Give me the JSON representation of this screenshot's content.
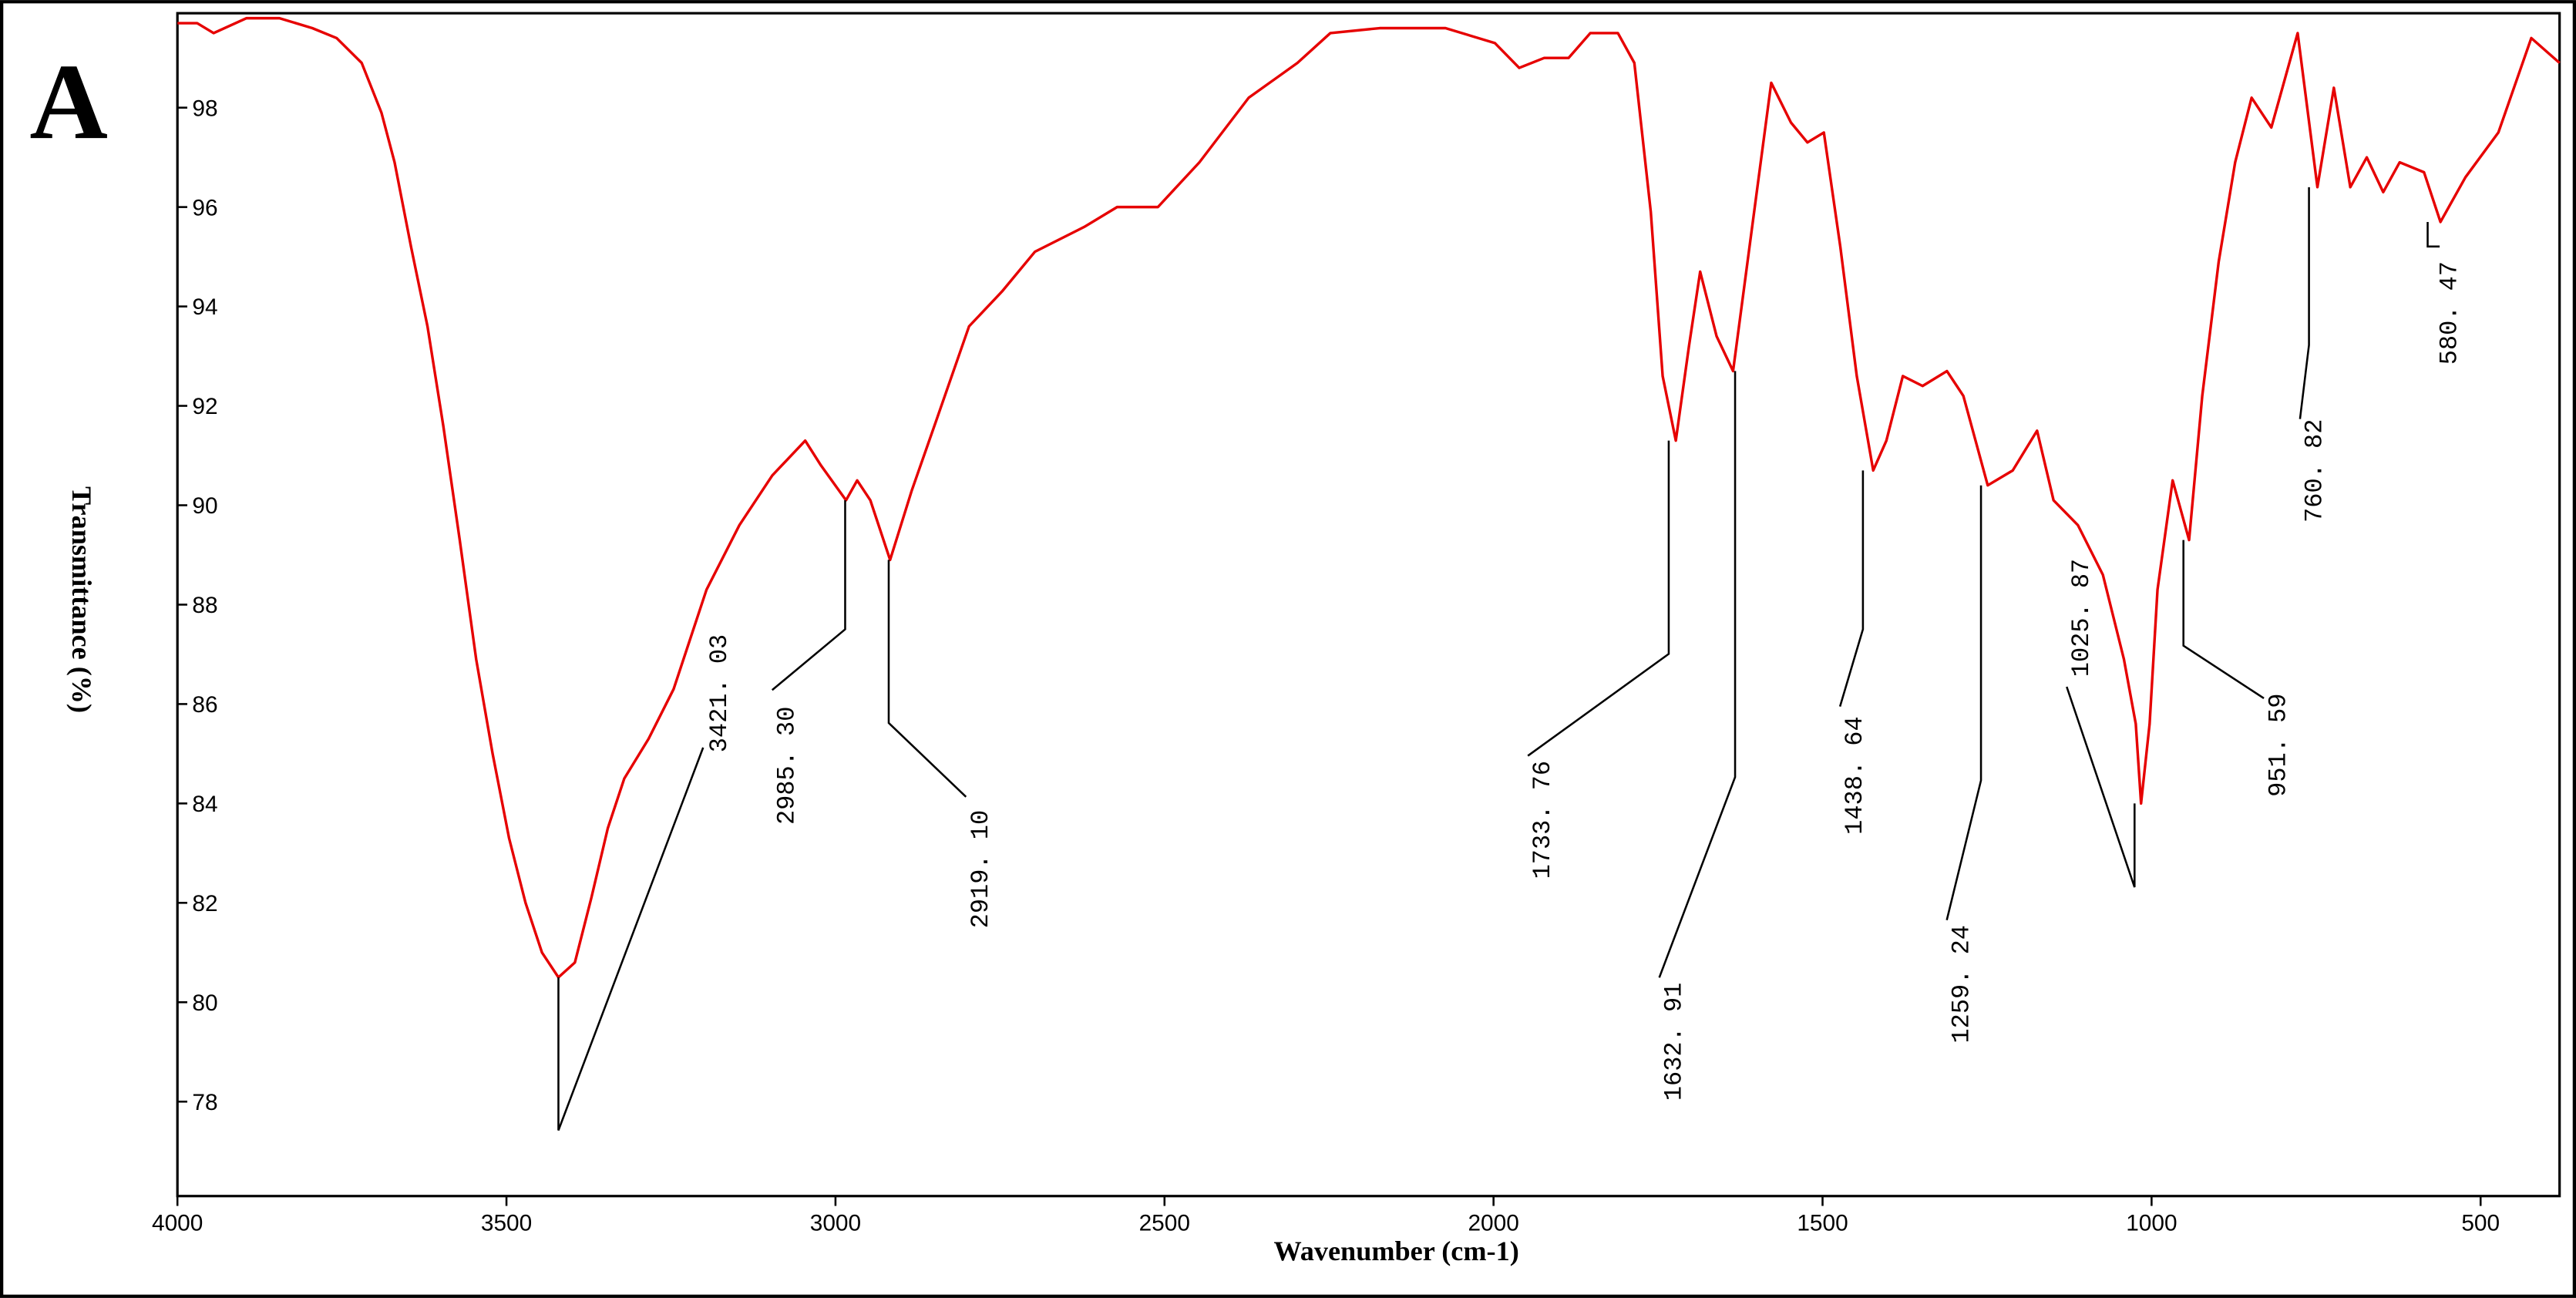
{
  "chart_data": {
    "type": "line",
    "panel_label": "A",
    "x_label": "Wavenumber (cm-1)",
    "y_label": "Transmittance (%)",
    "xlim": [
      4000,
      380
    ],
    "ylim": [
      76.1,
      99.9
    ],
    "xticks": [
      4000,
      3500,
      3000,
      2500,
      2000,
      1500,
      1000,
      500
    ],
    "yticks": [
      78,
      80,
      82,
      84,
      86,
      88,
      90,
      92,
      94,
      96,
      98
    ],
    "series": [
      {
        "color": "#e60000",
        "x": [
          4000,
          3970,
          3945,
          3895,
          3845,
          3795,
          3758,
          3720,
          3690,
          3670,
          3645,
          3620,
          3596,
          3571,
          3546,
          3521,
          3496,
          3471,
          3446,
          3421,
          3396,
          3371,
          3346,
          3321,
          3284,
          3246,
          3196,
          3146,
          3096,
          3046,
          3022,
          2984,
          2967,
          2947,
          2917,
          2884,
          2847,
          2797,
          2747,
          2697,
          2622,
          2572,
          2510,
          2447,
          2372,
          2298,
          2248,
          2173,
          2073,
          1998,
          1961,
          1923,
          1886,
          1853,
          1811,
          1786,
          1761,
          1743,
          1723,
          1703,
          1686,
          1661,
          1636,
          1611,
          1578,
          1548,
          1523,
          1498,
          1473,
          1448,
          1423,
          1403,
          1378,
          1348,
          1311,
          1286,
          1249,
          1211,
          1174,
          1149,
          1112,
          1074,
          1042,
          1024,
          1016,
          1003,
          991,
          968,
          943,
          923,
          898,
          873,
          848,
          818,
          778,
          748,
          723,
          698,
          673,
          648,
          623,
          586,
          561,
          523,
          473,
          423,
          380
        ],
        "values": [
          99.7,
          99.7,
          99.5,
          99.8,
          99.8,
          99.6,
          99.4,
          98.9,
          97.9,
          96.9,
          95.2,
          93.6,
          91.6,
          89.3,
          86.9,
          85.0,
          83.3,
          82.0,
          81.0,
          80.5,
          80.8,
          82.1,
          83.5,
          84.5,
          85.3,
          86.3,
          88.3,
          89.6,
          90.6,
          91.3,
          90.8,
          90.1,
          90.5,
          90.1,
          88.9,
          90.3,
          91.7,
          93.6,
          94.3,
          95.1,
          95.6,
          96.0,
          96.0,
          96.9,
          98.2,
          98.9,
          99.5,
          99.6,
          99.6,
          99.3,
          98.8,
          99.0,
          99.0,
          99.5,
          99.5,
          98.9,
          95.9,
          92.6,
          91.3,
          93.2,
          94.7,
          93.4,
          92.7,
          95.2,
          98.5,
          97.7,
          97.3,
          97.5,
          95.2,
          92.6,
          90.7,
          91.3,
          92.6,
          92.4,
          92.7,
          92.2,
          90.4,
          90.7,
          91.5,
          90.1,
          89.6,
          88.6,
          86.9,
          85.6,
          84.0,
          85.6,
          88.3,
          90.5,
          89.3,
          92.2,
          94.9,
          96.9,
          98.2,
          97.6,
          99.5,
          96.4,
          98.4,
          96.4,
          97.0,
          96.3,
          96.9,
          96.7,
          95.7,
          96.6,
          97.5,
          99.4,
          98.9
        ]
      }
    ],
    "peaks": [
      {
        "label": "3421. 03",
        "x": 3421.03,
        "y": 80.5
      },
      {
        "label": "2985. 30",
        "x": 2985.3,
        "y": 90.1
      },
      {
        "label": "2919. 10",
        "x": 2919.1,
        "y": 88.9
      },
      {
        "label": "1733. 76",
        "x": 1733.76,
        "y": 91.3
      },
      {
        "label": "1632. 91",
        "x": 1632.91,
        "y": 92.7
      },
      {
        "label": "1438. 64",
        "x": 1438.64,
        "y": 90.7
      },
      {
        "label": "1259. 24",
        "x": 1259.24,
        "y": 90.4
      },
      {
        "label": "1025. 87",
        "x": 1025.87,
        "y": 84.0
      },
      {
        "label": "951. 59",
        "x": 951.59,
        "y": 89.3
      },
      {
        "label": "760. 82",
        "x": 760.82,
        "y": 96.4
      },
      {
        "label": "580. 47",
        "x": 580.47,
        "y": 95.7
      }
    ]
  }
}
